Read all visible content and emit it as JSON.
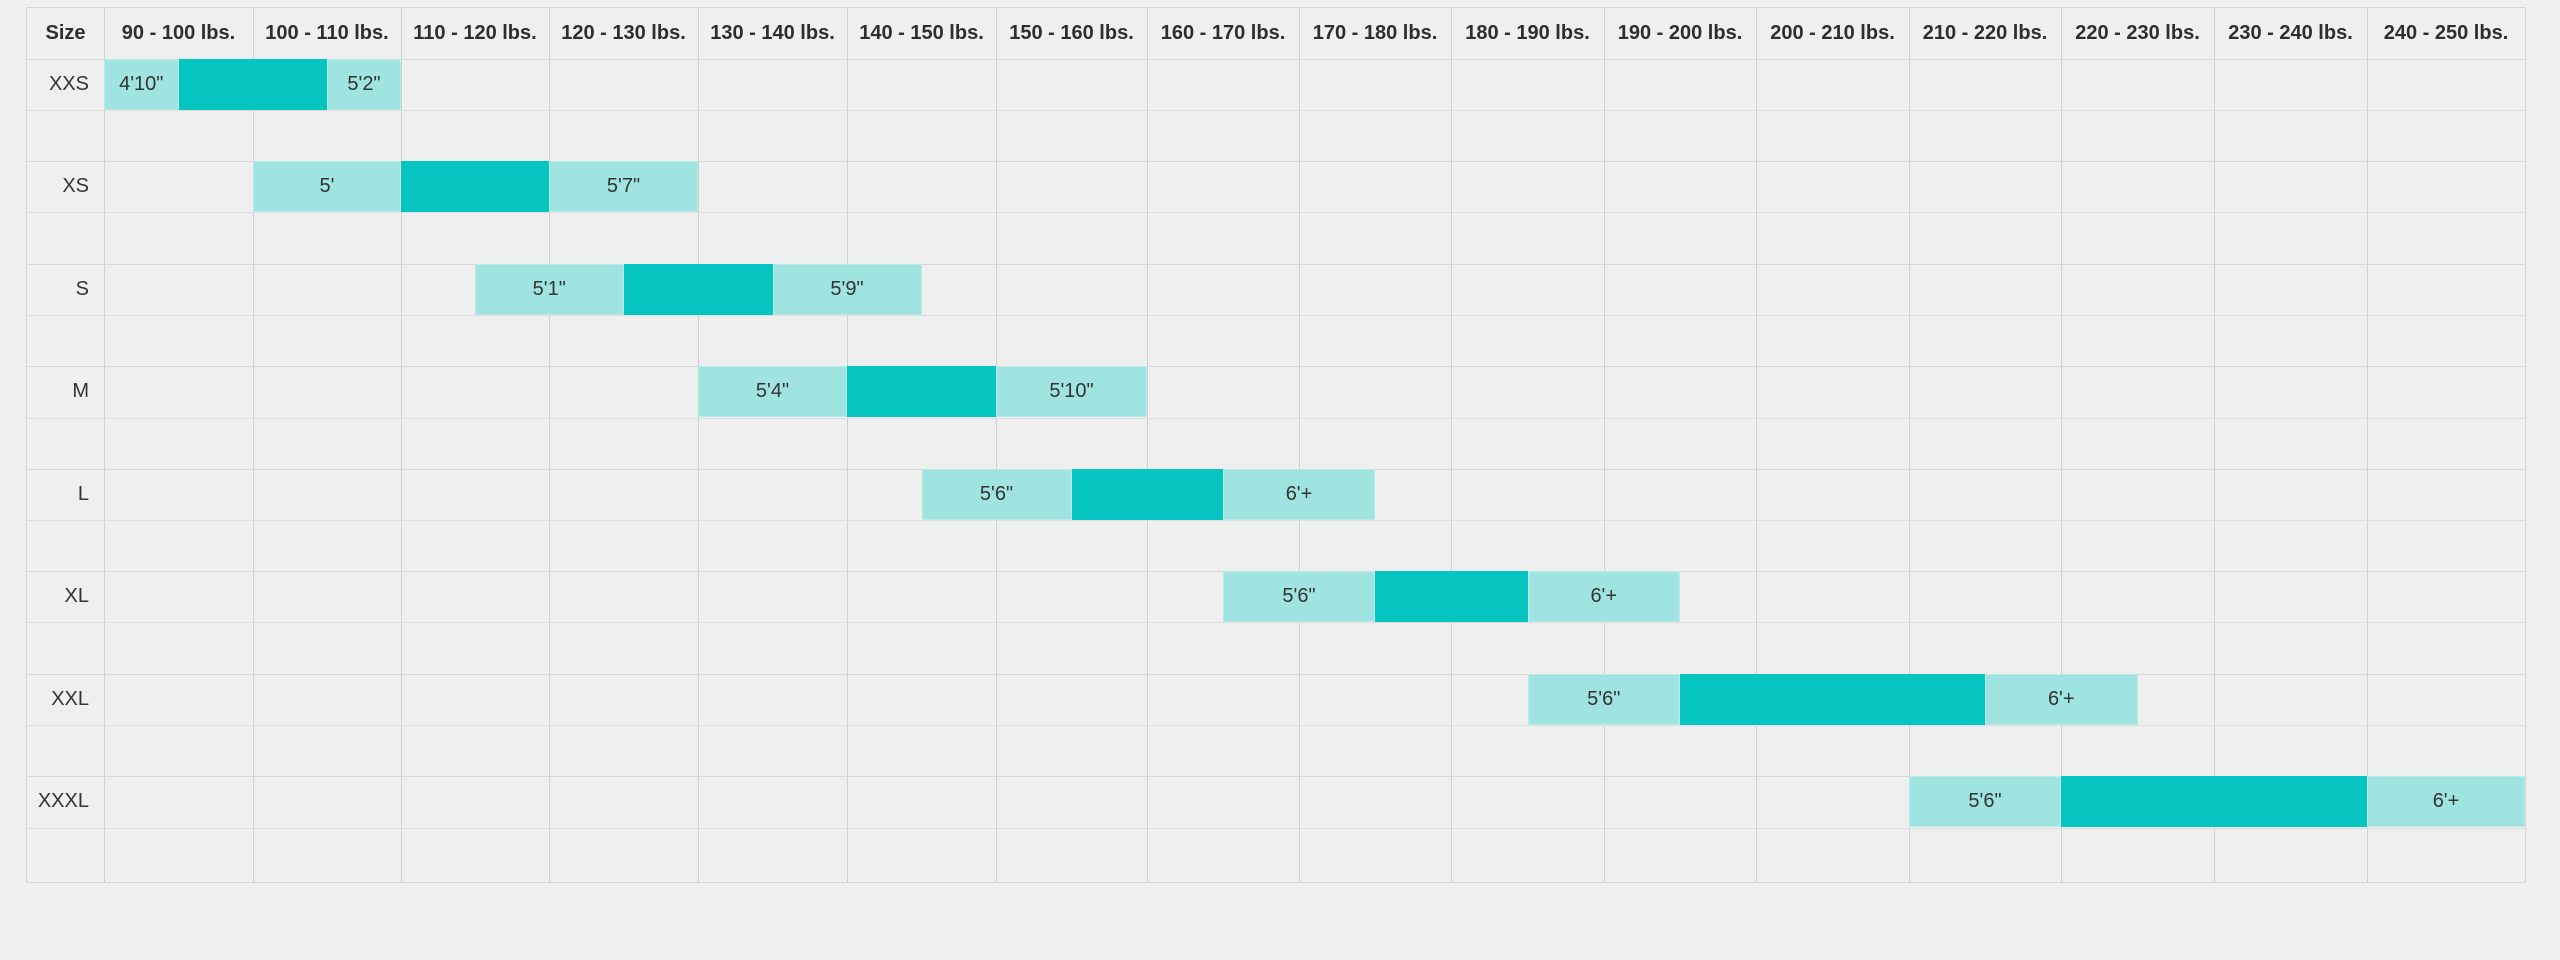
{
  "header": {
    "size_label": "Size",
    "weight_columns": [
      "90 - 100 lbs.",
      "100 - 110 lbs.",
      "110 - 120 lbs.",
      "120 - 130 lbs.",
      "130 - 140 lbs.",
      "140 - 150 lbs.",
      "150 - 160 lbs.",
      "160 - 170 lbs.",
      "170 - 180 lbs.",
      "180 - 190 lbs.",
      "190 - 200 lbs.",
      "200 - 210 lbs.",
      "210 - 220 lbs.",
      "220 - 230 lbs.",
      "230 - 240 lbs.",
      "240 - 250 lbs."
    ]
  },
  "sizes": [
    {
      "size": "XXS",
      "min_height": "4'10\"",
      "max_height": "5'2\""
    },
    {
      "size": "XS",
      "min_height": "5'",
      "max_height": "5'7\""
    },
    {
      "size": "S",
      "min_height": "5'1\"",
      "max_height": "5'9\""
    },
    {
      "size": "M",
      "min_height": "5'4\"",
      "max_height": "5'10\""
    },
    {
      "size": "L",
      "min_height": "5'6\"",
      "max_height": "6'+"
    },
    {
      "size": "XL",
      "min_height": "5'6\"",
      "max_height": "6'+"
    },
    {
      "size": "XXL",
      "min_height": "5'6\"",
      "max_height": "6'+"
    },
    {
      "size": "XXXL",
      "min_height": "5'6\"",
      "max_height": "6'+"
    }
  ],
  "colors": {
    "range_light": "#9fe4e0",
    "range_dark": "#06c5c1",
    "background": "#efefef",
    "grid": "#cfcfcf"
  }
}
